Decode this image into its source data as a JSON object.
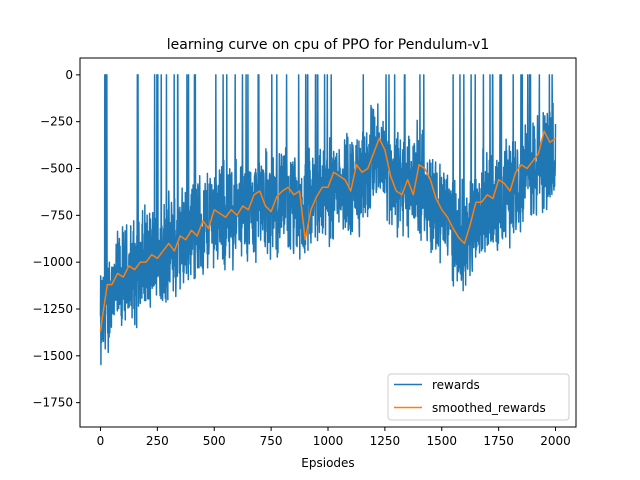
{
  "chart_data": {
    "type": "line",
    "title": "learning curve on cpu of PPO for Pendulum-v1",
    "xlabel": "Epsiodes",
    "ylabel": "",
    "xlim": [
      -90,
      2090
    ],
    "ylim": [
      -1880,
      90
    ],
    "x_ticks": [
      0,
      250,
      500,
      750,
      1000,
      1250,
      1500,
      1750,
      2000
    ],
    "x_tick_labels": [
      "0",
      "250",
      "500",
      "750",
      "1000",
      "1250",
      "1500",
      "1750",
      "2000"
    ],
    "y_ticks": [
      0,
      -250,
      -500,
      -750,
      -1000,
      -1250,
      -1500,
      -1750
    ],
    "y_tick_labels": [
      "0",
      "−250",
      "−500",
      "−750",
      "−1000",
      "−1250",
      "−1500",
      "−1750"
    ],
    "grid": false,
    "legend_position": "lower-right",
    "series": [
      {
        "name": "rewards",
        "color": "#1f77b4",
        "trend_x": [
          0,
          50,
          100,
          150,
          200,
          250,
          300,
          350,
          400,
          450,
          500,
          550,
          600,
          650,
          700,
          750,
          800,
          850,
          900,
          950,
          1000,
          1050,
          1100,
          1150,
          1200,
          1250,
          1300,
          1350,
          1400,
          1450,
          1500,
          1550,
          1600,
          1650,
          1700,
          1750,
          1800,
          1850,
          1900,
          1950,
          2000
        ],
        "trend_y": [
          -1350,
          -1150,
          -1100,
          -1050,
          -1000,
          -980,
          -930,
          -900,
          -820,
          -800,
          -740,
          -760,
          -730,
          -740,
          -660,
          -700,
          -650,
          -720,
          -720,
          -640,
          -620,
          -560,
          -580,
          -600,
          -420,
          -480,
          -580,
          -600,
          -560,
          -680,
          -720,
          -800,
          -880,
          -740,
          -680,
          -700,
          -600,
          -520,
          -520,
          -450,
          -380
        ],
        "noise_amplitude": 240,
        "max_value": 0,
        "min_value": -1790
      },
      {
        "name": "smoothed_rewards",
        "color": "#ff7f0e",
        "x": [
          0,
          10,
          20,
          30,
          50,
          75,
          100,
          125,
          150,
          175,
          200,
          225,
          250,
          275,
          300,
          325,
          350,
          375,
          400,
          425,
          450,
          475,
          500,
          525,
          550,
          575,
          600,
          625,
          650,
          675,
          700,
          725,
          750,
          775,
          800,
          825,
          850,
          875,
          900,
          925,
          950,
          975,
          1000,
          1025,
          1050,
          1075,
          1100,
          1125,
          1150,
          1175,
          1200,
          1225,
          1250,
          1275,
          1300,
          1325,
          1350,
          1375,
          1400,
          1425,
          1450,
          1475,
          1500,
          1525,
          1550,
          1575,
          1600,
          1625,
          1650,
          1675,
          1700,
          1725,
          1750,
          1775,
          1800,
          1825,
          1850,
          1875,
          1900,
          1925,
          1950,
          1975,
          2000
        ],
        "y": [
          -1370,
          -1280,
          -1200,
          -1120,
          -1120,
          -1060,
          -1080,
          -1020,
          -1040,
          -1000,
          -1000,
          -960,
          -980,
          -940,
          -900,
          -940,
          -860,
          -880,
          -830,
          -860,
          -780,
          -820,
          -720,
          -740,
          -760,
          -720,
          -750,
          -700,
          -720,
          -640,
          -620,
          -700,
          -730,
          -650,
          -620,
          -600,
          -640,
          -620,
          -880,
          -720,
          -650,
          -600,
          -600,
          -520,
          -540,
          -560,
          -620,
          -480,
          -520,
          -500,
          -420,
          -340,
          -400,
          -540,
          -620,
          -640,
          -560,
          -640,
          -480,
          -500,
          -560,
          -660,
          -720,
          -760,
          -820,
          -870,
          -900,
          -800,
          -680,
          -680,
          -640,
          -660,
          -560,
          -580,
          -620,
          -520,
          -480,
          -500,
          -460,
          -420,
          -300,
          -360,
          -340
        ]
      }
    ]
  }
}
